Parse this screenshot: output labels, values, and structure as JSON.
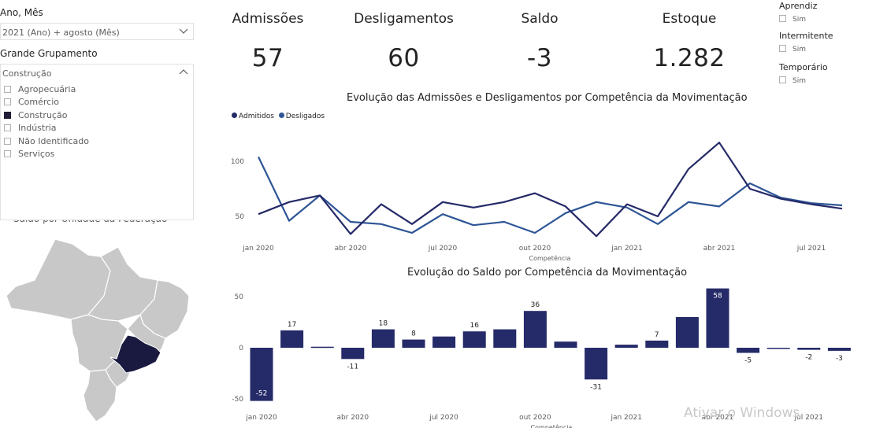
{
  "filters": {
    "period_label": "Ano, Mês",
    "period_value": "2021 (Ano) + agosto (Mês)",
    "group_label": "Grande Grupamento",
    "group_value": "Construção",
    "group_options": [
      {
        "label": "Agropecuária",
        "checked": false
      },
      {
        "label": "Comércio",
        "checked": false
      },
      {
        "label": "Construção",
        "checked": true
      },
      {
        "label": "Indústria",
        "checked": false
      },
      {
        "label": "Não Identificado",
        "checked": false
      },
      {
        "label": "Serviços",
        "checked": false
      }
    ]
  },
  "kpis": [
    {
      "title": "Admissões",
      "value": "57"
    },
    {
      "title": "Desligamentos",
      "value": "60"
    },
    {
      "title": "Saldo",
      "value": "-3"
    },
    {
      "title": "Estoque",
      "value": "1.282"
    }
  ],
  "slicers": [
    {
      "title": "Aprendiz",
      "option": "Sim"
    },
    {
      "title": "Intermitente",
      "option": "Sim"
    },
    {
      "title": "Temporário",
      "option": "Sim"
    }
  ],
  "map": {
    "title": "Saldo por Unidade da Federação",
    "highlight_color": "#1a1a40",
    "base_color": "#c8c8c8"
  },
  "colors": {
    "admitidos": "#252a68",
    "desligados": "#2e5596",
    "bar": "#252a68"
  },
  "chart_data": [
    {
      "type": "line",
      "title": "Evolução das Admissões e Desligamentos por Competência da Movimentação",
      "xlabel": "Competência",
      "ylabel": "",
      "x_tick_labels": [
        {
          "label": "jan 2020",
          "index": 0
        },
        {
          "label": "abr 2020",
          "index": 3
        },
        {
          "label": "jul 2020",
          "index": 6
        },
        {
          "label": "out 2020",
          "index": 9
        },
        {
          "label": "jan 2021",
          "index": 12
        },
        {
          "label": "abr 2021",
          "index": 15
        },
        {
          "label": "jul 2021",
          "index": 18
        }
      ],
      "y_ticks": [
        50,
        100
      ],
      "ylim": [
        25,
        125
      ],
      "series": [
        {
          "name": "Admitidos",
          "values": [
            52,
            63,
            69,
            34,
            61,
            43,
            63,
            58,
            63,
            71,
            59,
            32,
            61,
            50,
            93,
            117,
            75,
            66,
            61,
            57
          ]
        },
        {
          "name": "Desligados",
          "values": [
            104,
            46,
            69,
            45,
            43,
            35,
            52,
            42,
            45,
            35,
            53,
            63,
            58,
            43,
            63,
            59,
            80,
            67,
            62,
            60
          ]
        }
      ]
    },
    {
      "type": "bar",
      "title": "Evolução do Saldo por Competência da Movimentação",
      "xlabel": "Competência",
      "x_tick_labels": [
        {
          "label": "jan 2020",
          "index": 0
        },
        {
          "label": "abr 2020",
          "index": 3
        },
        {
          "label": "jul 2020",
          "index": 6
        },
        {
          "label": "out 2020",
          "index": 9
        },
        {
          "label": "jan 2021",
          "index": 12
        },
        {
          "label": "abr 2021",
          "index": 15
        },
        {
          "label": "jul 2021",
          "index": 18
        }
      ],
      "y_ticks": [
        -50,
        0,
        50
      ],
      "ylim": [
        -55,
        60
      ],
      "values": [
        -52,
        17,
        1,
        -11,
        18,
        8,
        11,
        16,
        18,
        36,
        6,
        -31,
        3,
        7,
        30,
        58,
        -5,
        -1,
        -2,
        -3
      ],
      "data_labels": [
        "-52",
        "17",
        "",
        "-11",
        "18",
        "8",
        "",
        "16",
        "",
        "36",
        "",
        "-31",
        "",
        "7",
        "",
        "58",
        "-5",
        "",
        "-2",
        "-3"
      ]
    }
  ],
  "watermark": "Ativar o Windows"
}
